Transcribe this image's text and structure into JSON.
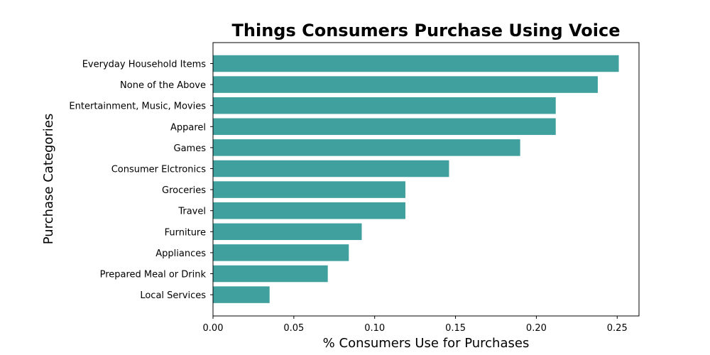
{
  "chart_data": {
    "type": "bar",
    "orientation": "horizontal",
    "title": "Things Consumers Purchase Using Voice",
    "xlabel": "% Consumers Use for Purchases",
    "ylabel": "Purchase Categories",
    "xlim": [
      0,
      0.2635
    ],
    "x_ticks": [
      "0.00",
      "0.05",
      "0.10",
      "0.15",
      "0.20",
      "0.25"
    ],
    "grid": false,
    "legend": "none",
    "bar_color": "#40a09d",
    "categories": [
      "Everyday Household Items",
      "None of the Above",
      "Entertainment, Music, Movies",
      "Apparel",
      "Games",
      "Consumer Elctronics",
      "Groceries",
      "Travel",
      "Furniture",
      "Appliances",
      "Prepared Meal or Drink",
      "Local Services"
    ],
    "values": [
      0.251,
      0.238,
      0.212,
      0.212,
      0.19,
      0.146,
      0.119,
      0.119,
      0.092,
      0.084,
      0.071,
      0.035
    ]
  }
}
